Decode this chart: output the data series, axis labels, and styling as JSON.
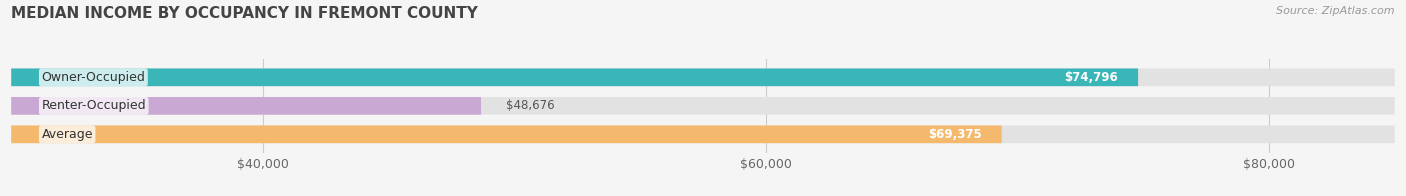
{
  "title": "MEDIAN INCOME BY OCCUPANCY IN FREMONT COUNTY",
  "source": "Source: ZipAtlas.com",
  "categories": [
    "Owner-Occupied",
    "Renter-Occupied",
    "Average"
  ],
  "values": [
    74796,
    48676,
    69375
  ],
  "bar_colors": [
    "#3ab5b8",
    "#c9a8d4",
    "#f5b96e"
  ],
  "value_labels": [
    "$74,796",
    "$48,676",
    "$69,375"
  ],
  "value_label_inside": [
    true,
    false,
    true
  ],
  "xlim": [
    30000,
    85000
  ],
  "xticks": [
    40000,
    60000,
    80000
  ],
  "xtick_labels": [
    "$40,000",
    "$60,000",
    "$80,000"
  ],
  "bg_color": "#f5f5f5",
  "bar_bg_color": "#e2e2e2",
  "title_color": "#444444",
  "source_color": "#999999",
  "bar_height": 0.62,
  "title_fontsize": 11,
  "label_fontsize": 9,
  "value_fontsize": 8.5,
  "source_fontsize": 8
}
